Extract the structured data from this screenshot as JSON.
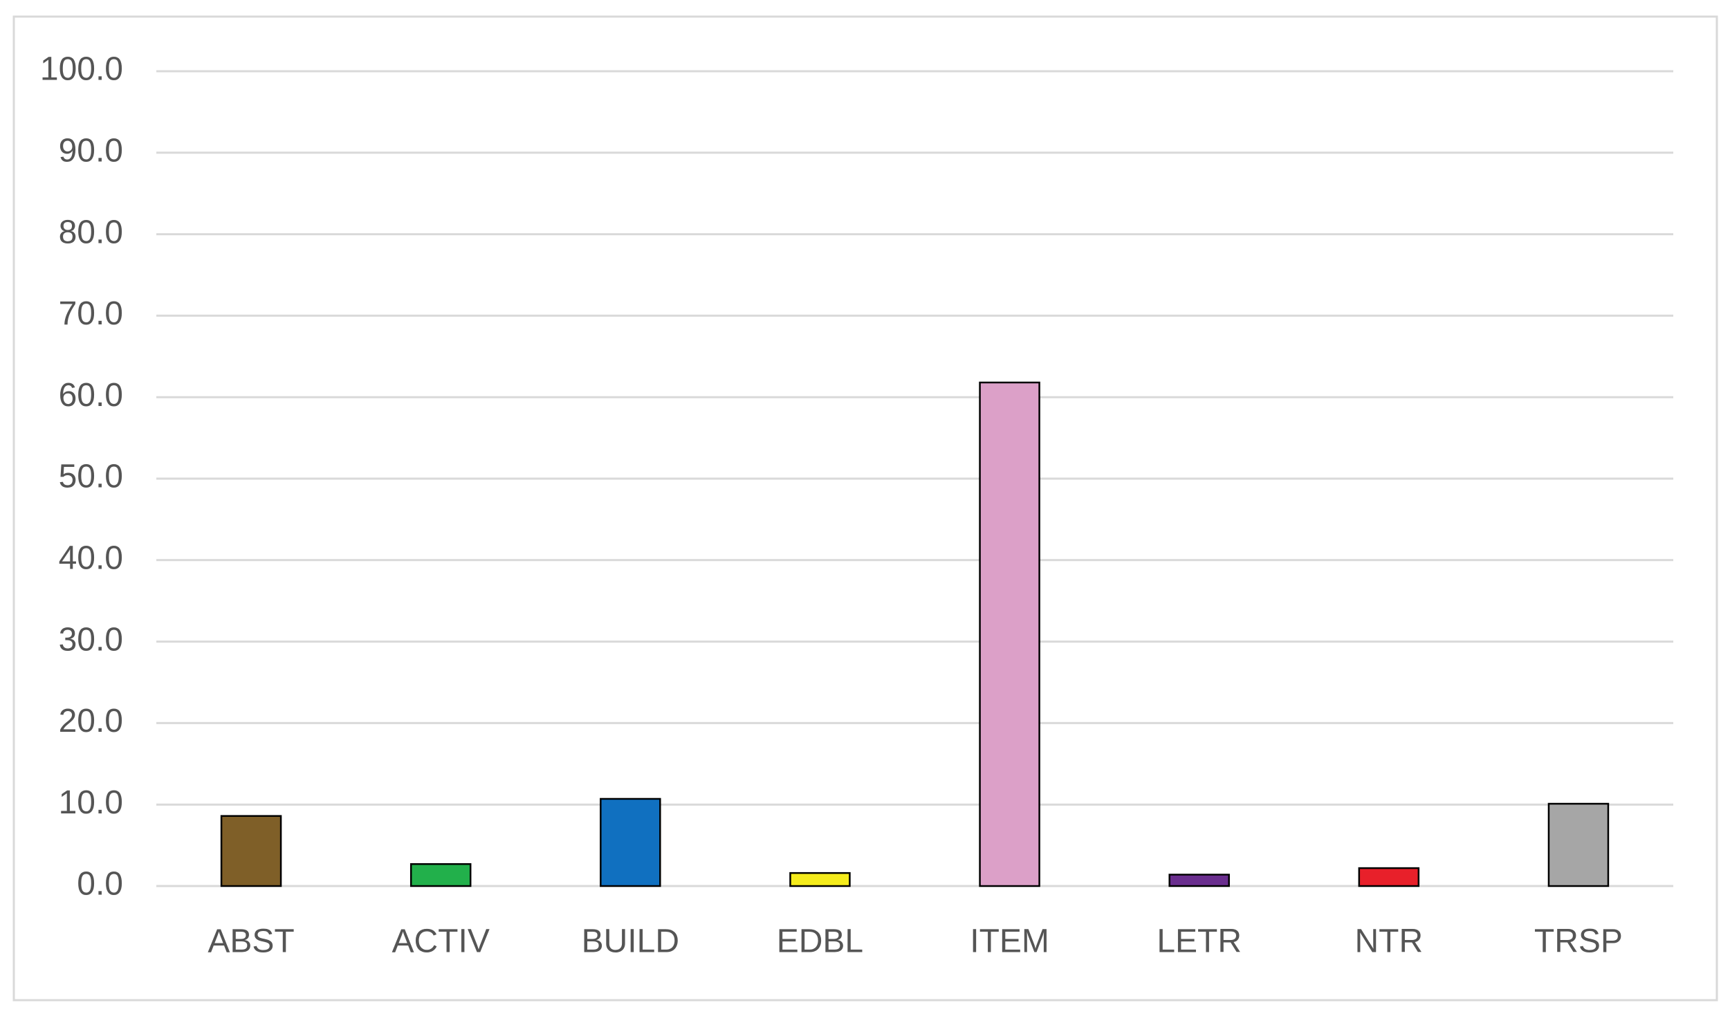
{
  "chart_data": {
    "type": "bar",
    "categories": [
      "ABST",
      "ACTIV",
      "BUILD",
      "EDBL",
      "ITEM",
      "LETR",
      "NTR",
      "TRSP"
    ],
    "values": [
      8.6,
      2.7,
      10.7,
      1.6,
      61.8,
      1.4,
      2.2,
      10.1
    ],
    "colors": [
      "#7f5f28",
      "#22b04b",
      "#1070c0",
      "#f5ec1c",
      "#dca0c8",
      "#6a2e8e",
      "#e8202a",
      "#a6a6a6"
    ],
    "ylim": [
      0,
      100
    ],
    "yticks": [
      {
        "value": 0,
        "label": "0.0"
      },
      {
        "value": 10,
        "label": "10.0"
      },
      {
        "value": 20,
        "label": "20.0"
      },
      {
        "value": 30,
        "label": "30.0"
      },
      {
        "value": 40,
        "label": "40.0"
      },
      {
        "value": 50,
        "label": "50.0"
      },
      {
        "value": 60,
        "label": "60.0"
      },
      {
        "value": 70,
        "label": "70.0"
      },
      {
        "value": 80,
        "label": "80.0"
      },
      {
        "value": 90,
        "label": "90.0"
      },
      {
        "value": 100,
        "label": "100.0"
      }
    ],
    "grid": true
  }
}
